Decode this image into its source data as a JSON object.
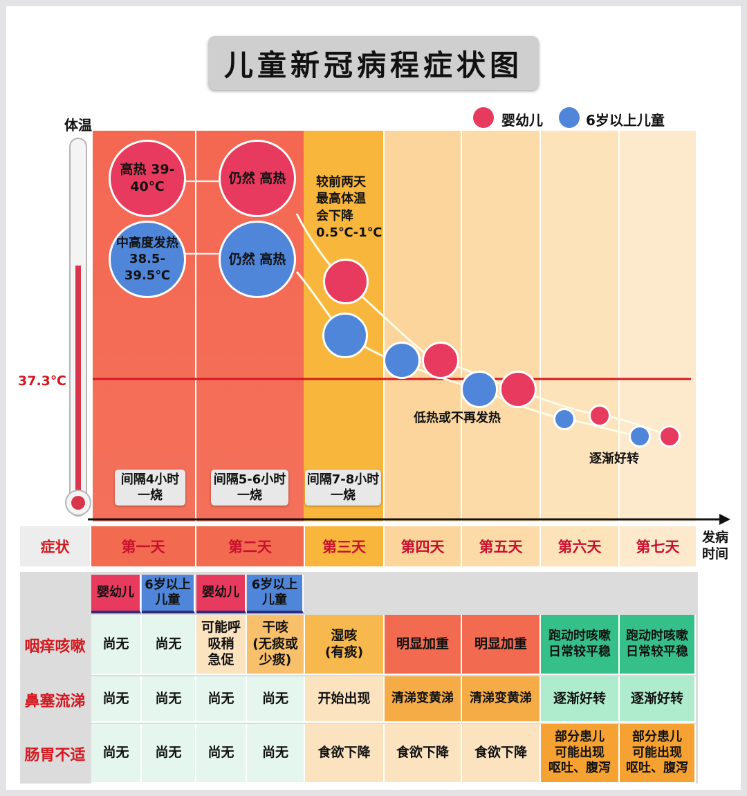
{
  "title": "儿童新冠病程症状图",
  "legend": [
    {
      "label": "婴幼儿",
      "color": "#e83a5f"
    },
    {
      "label": "6岁以上儿童",
      "color": "#4f86d9"
    }
  ],
  "y_axis": {
    "label": "体温",
    "reference_value": "37.3℃"
  },
  "x_axis": {
    "label": "发病\n时间"
  },
  "bubbles": {
    "infant_day1": "高热\n39-40℃",
    "child_day1": "中高度发热\n38.5-39.5℃",
    "infant_day2": "仍然\n高热",
    "child_day2": "仍然\n高热"
  },
  "annotations": {
    "day3": "较前两天\n最高体温\n会下降\n0.5℃-1℃",
    "low_fever": "低热或不再发热",
    "improving": "逐渐好转"
  },
  "intervals": [
    "间隔4小时\n一烧",
    "间隔5-6小时\n一烧",
    "间隔7-8小时\n一烧"
  ],
  "days": {
    "header_label": "症状",
    "labels": [
      "第一天",
      "第二天",
      "第三天",
      "第四天",
      "第五天",
      "第六天",
      "第七天"
    ]
  },
  "table": {
    "group_headers": [
      "婴幼儿",
      "6岁以上\n儿童",
      "婴幼儿",
      "6岁以上\n儿童"
    ],
    "rows": [
      {
        "label": "咽痒咳嗽",
        "cells": [
          "尚无",
          "尚无",
          "可能呼\n吸稍\n急促",
          "干咳\n(无痰或\n少痰)",
          "湿咳\n(有痰)",
          "明显加重",
          "明显加重",
          "跑动时咳嗽\n日常较平稳",
          "跑动时咳嗽\n日常较平稳"
        ]
      },
      {
        "label": "鼻塞流涕",
        "cells": [
          "尚无",
          "尚无",
          "尚无",
          "尚无",
          "开始出现",
          "清涕变黄涕",
          "清涕变黄涕",
          "逐渐好转",
          "逐渐好转"
        ]
      },
      {
        "label": "肠胃不适",
        "cells": [
          "尚无",
          "尚无",
          "尚无",
          "尚无",
          "食欲下降",
          "食欲下降",
          "食欲下降",
          "部分患儿\n可能出现\n呕吐、腹泻",
          "部分患儿\n可能出现\n呕吐、腹泻"
        ]
      }
    ]
  },
  "colors": {
    "fever_red": "#f26a50",
    "fever_orange": "#f8b63c",
    "light_peach": "#fce1b4",
    "reference_line": "#d4181f",
    "cell_mint": "#e4f6ee",
    "cell_peach": "#fbe3c0",
    "cell_salmon": "#f26a50",
    "cell_orange": "#f6ac46",
    "cell_green": "#35c08a"
  }
}
